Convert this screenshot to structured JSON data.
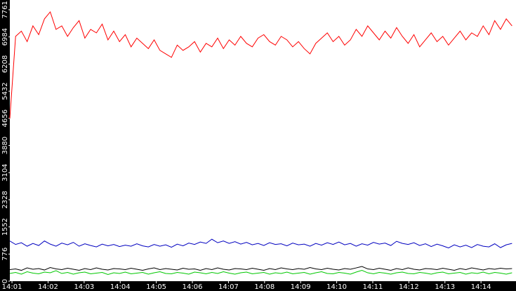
{
  "chart_data": {
    "type": "line",
    "xlim": [
      0.94,
      14.97
    ],
    "xticks": [
      {
        "value": 1,
        "label": "14:01"
      },
      {
        "value": 2,
        "label": "14:02"
      },
      {
        "value": 3,
        "label": "14:03"
      },
      {
        "value": 4,
        "label": "14:04"
      },
      {
        "value": 5,
        "label": "14:05"
      },
      {
        "value": 6,
        "label": "14:06"
      },
      {
        "value": 7,
        "label": "14:07"
      },
      {
        "value": 8,
        "label": "14:08"
      },
      {
        "value": 9,
        "label": "14:09"
      },
      {
        "value": 10,
        "label": "14:10"
      },
      {
        "value": 11,
        "label": "14:11"
      },
      {
        "value": 12,
        "label": "14:12"
      },
      {
        "value": 13,
        "label": "14:13"
      },
      {
        "value": 14,
        "label": "14:14"
      }
    ],
    "ylim": [
      0,
      8040
    ],
    "yticks": [
      0,
      776,
      1552,
      2328,
      3104,
      3880,
      4656,
      5432,
      6208,
      6984,
      7761
    ],
    "x": [
      0.94,
      1.1,
      1.26,
      1.42,
      1.58,
      1.74,
      1.9,
      2.06,
      2.22,
      2.38,
      2.54,
      2.7,
      2.86,
      3.02,
      3.18,
      3.34,
      3.5,
      3.66,
      3.82,
      3.98,
      4.14,
      4.3,
      4.46,
      4.62,
      4.78,
      4.94,
      5.1,
      5.26,
      5.42,
      5.58,
      5.74,
      5.9,
      6.06,
      6.22,
      6.38,
      6.54,
      6.7,
      6.86,
      7.02,
      7.18,
      7.34,
      7.5,
      7.66,
      7.82,
      7.98,
      8.14,
      8.3,
      8.46,
      8.62,
      8.78,
      8.94,
      9.1,
      9.26,
      9.42,
      9.58,
      9.74,
      9.9,
      10.06,
      10.22,
      10.38,
      10.54,
      10.7,
      10.86,
      11.02,
      11.18,
      11.34,
      11.5,
      11.66,
      11.82,
      11.98,
      12.14,
      12.3,
      12.46,
      12.62,
      12.78,
      12.94,
      13.1,
      13.26,
      13.42,
      13.58,
      13.74,
      13.9,
      14.06,
      14.22,
      14.38,
      14.54,
      14.7,
      14.86
    ],
    "series": [
      {
        "color": "#ff0000",
        "values": [
          4650,
          7000,
          7150,
          6850,
          7300,
          7050,
          7500,
          7700,
          7200,
          7300,
          7000,
          7250,
          7450,
          6950,
          7200,
          7100,
          7350,
          6900,
          7150,
          6850,
          7050,
          6700,
          6950,
          6800,
          6650,
          6900,
          6600,
          6500,
          6400,
          6750,
          6600,
          6700,
          6850,
          6550,
          6800,
          6700,
          6950,
          6650,
          6900,
          6750,
          7000,
          6800,
          6700,
          6950,
          7050,
          6850,
          6750,
          7000,
          6900,
          6700,
          6850,
          6650,
          6500,
          6800,
          6950,
          7100,
          6850,
          7000,
          6750,
          6900,
          7200,
          7000,
          7300,
          7100,
          6900,
          7150,
          6950,
          7250,
          7000,
          6800,
          7050,
          6700,
          6900,
          7100,
          6850,
          7000,
          6750,
          6950,
          7150,
          6900,
          7100,
          7000,
          7300,
          7050,
          7450,
          7200,
          7500,
          7300
        ]
      },
      {
        "color": "#0000c0",
        "values": [
          1150,
          1050,
          1100,
          1000,
          1080,
          1020,
          1150,
          1060,
          1000,
          1090,
          1040,
          1110,
          1000,
          1070,
          1020,
          980,
          1060,
          1010,
          1050,
          990,
          1030,
          1000,
          1070,
          1010,
          980,
          1050,
          1000,
          1040,
          970,
          1060,
          1010,
          1090,
          1050,
          1120,
          1080,
          1200,
          1100,
          1150,
          1080,
          1130,
          1060,
          1110,
          1040,
          1080,
          1020,
          1100,
          1050,
          1070,
          1010,
          1090,
          1040,
          1060,
          1000,
          1080,
          1030,
          1100,
          1050,
          1120,
          1040,
          1080,
          1000,
          1070,
          1030,
          1110,
          1060,
          1090,
          1020,
          1140,
          1080,
          1050,
          1100,
          1020,
          1070,
          990,
          1060,
          1010,
          950,
          1040,
          980,
          1030,
          960,
          1050,
          1000,
          980,
          1070,
          960,
          1040,
          1080
        ]
      },
      {
        "color": "#000000",
        "values": [
          330,
          350,
          310,
          380,
          340,
          360,
          320,
          390,
          350,
          330,
          370,
          340,
          310,
          360,
          330,
          380,
          340,
          320,
          360,
          350,
          330,
          370,
          340,
          310,
          350,
          380,
          330,
          360,
          340,
          320,
          370,
          340,
          350,
          310,
          360,
          330,
          380,
          340,
          320,
          360,
          350,
          330,
          370,
          340,
          310,
          360,
          330,
          380,
          350,
          330,
          360,
          340,
          390,
          350,
          330,
          370,
          340,
          320,
          360,
          340,
          380,
          420,
          350,
          330,
          370,
          340,
          310,
          360,
          330,
          380,
          340,
          320,
          360,
          350,
          330,
          370,
          340,
          310,
          360,
          330,
          380,
          350,
          320,
          360,
          340,
          370,
          350,
          360
        ]
      },
      {
        "color": "#00c800",
        "values": [
          220,
          250,
          200,
          270,
          230,
          210,
          260,
          240,
          300,
          220,
          250,
          200,
          240,
          260,
          210,
          230,
          250,
          190,
          240,
          220,
          260,
          210,
          230,
          250,
          200,
          240,
          270,
          220,
          210,
          250,
          230,
          200,
          260,
          240,
          210,
          250,
          220,
          270,
          230,
          200,
          240,
          260,
          210,
          230,
          250,
          200,
          240,
          220,
          260,
          210,
          230,
          250,
          200,
          240,
          270,
          220,
          210,
          250,
          230,
          200,
          260,
          310,
          240,
          210,
          250,
          230,
          200,
          240,
          260,
          220,
          210,
          250,
          230,
          200,
          240,
          260,
          210,
          230,
          250,
          200,
          240,
          220,
          260,
          210,
          250,
          230,
          200,
          240
        ]
      }
    ]
  }
}
